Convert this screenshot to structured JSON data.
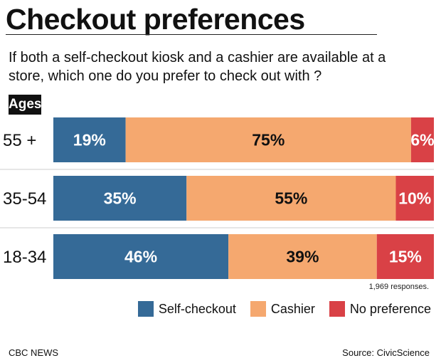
{
  "chart_data": {
    "type": "bar",
    "orientation": "horizontal",
    "stacked": true,
    "title": "Checkout preferences",
    "subtitle": "If both a self-checkout kiosk and a cashier are available at a store, which one do you prefer to check out with ?",
    "y_label": "Ages",
    "categories": [
      "55 +",
      "35-54",
      "18-34"
    ],
    "series": [
      {
        "name": "Self-checkout",
        "color": "#356a97",
        "values": [
          19,
          35,
          46
        ],
        "value_labels": [
          "19%",
          "35%",
          "46%"
        ]
      },
      {
        "name": "Cashier",
        "color": "#f5a86f",
        "values": [
          75,
          55,
          39
        ],
        "value_labels": [
          "75%",
          "55%",
          "39%"
        ]
      },
      {
        "name": "No preference",
        "color": "#d94146",
        "values": [
          6,
          10,
          15
        ],
        "value_labels": [
          "6%",
          "10%",
          "15%"
        ]
      }
    ],
    "xlim": [
      0,
      100
    ],
    "note": "1,969 responses.",
    "footer": "CBC NEWS",
    "source": "Source: CivicScience"
  }
}
